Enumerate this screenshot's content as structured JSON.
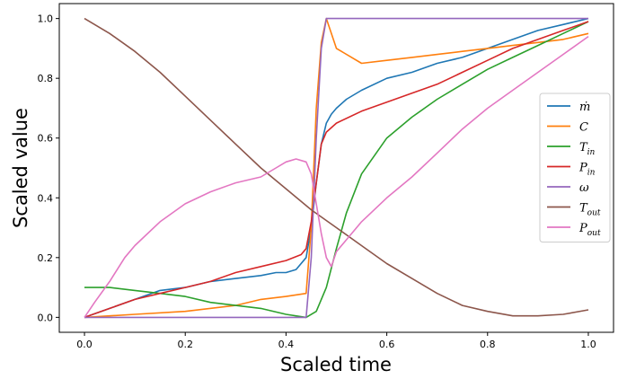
{
  "chart_data": {
    "type": "line",
    "xlabel": "Scaled time",
    "ylabel": "Scaled value",
    "xlim": [
      -0.05,
      1.05
    ],
    "ylim": [
      -0.05,
      1.05
    ],
    "xticks": [
      0.0,
      0.2,
      0.4,
      0.6,
      0.8,
      1.0
    ],
    "xtick_labels": [
      "0.0",
      "0.2",
      "0.4",
      "0.6",
      "0.8",
      "1.0"
    ],
    "yticks": [
      0.0,
      0.2,
      0.4,
      0.6,
      0.8,
      1.0
    ],
    "ytick_labels": [
      "0.0",
      "0.2",
      "0.4",
      "0.6",
      "0.8",
      "1.0"
    ],
    "grid": false,
    "legend_position": "right",
    "series": [
      {
        "name": "ṁ",
        "label_base": "ṁ",
        "label_sub": "",
        "color": "#1f77b4",
        "x": [
          0.0,
          0.05,
          0.1,
          0.15,
          0.2,
          0.25,
          0.3,
          0.35,
          0.38,
          0.4,
          0.42,
          0.44,
          0.45,
          0.46,
          0.47,
          0.48,
          0.49,
          0.5,
          0.52,
          0.55,
          0.6,
          0.65,
          0.7,
          0.75,
          0.8,
          0.85,
          0.9,
          0.95,
          1.0
        ],
        "y": [
          0.0,
          0.03,
          0.06,
          0.09,
          0.1,
          0.12,
          0.13,
          0.14,
          0.15,
          0.15,
          0.16,
          0.2,
          0.3,
          0.45,
          0.58,
          0.65,
          0.68,
          0.7,
          0.73,
          0.76,
          0.8,
          0.82,
          0.85,
          0.87,
          0.9,
          0.93,
          0.96,
          0.98,
          1.0
        ]
      },
      {
        "name": "C",
        "label_base": "C",
        "label_sub": "",
        "color": "#ff7f0e",
        "x": [
          0.0,
          0.1,
          0.2,
          0.3,
          0.35,
          0.4,
          0.44,
          0.45,
          0.46,
          0.47,
          0.48,
          0.49,
          0.5,
          0.55,
          0.6,
          0.65,
          0.7,
          0.75,
          0.8,
          0.85,
          0.9,
          0.95,
          1.0
        ],
        "y": [
          0.0,
          0.01,
          0.02,
          0.04,
          0.06,
          0.07,
          0.08,
          0.3,
          0.7,
          0.92,
          1.0,
          0.95,
          0.9,
          0.85,
          0.86,
          0.87,
          0.88,
          0.89,
          0.9,
          0.91,
          0.92,
          0.93,
          0.95
        ]
      },
      {
        "name": "Tin",
        "label_base": "T",
        "label_sub": "in",
        "color": "#2ca02c",
        "x": [
          0.0,
          0.05,
          0.1,
          0.15,
          0.2,
          0.25,
          0.3,
          0.35,
          0.4,
          0.44,
          0.46,
          0.48,
          0.5,
          0.52,
          0.55,
          0.6,
          0.65,
          0.7,
          0.75,
          0.8,
          0.85,
          0.9,
          0.95,
          1.0
        ],
        "y": [
          0.1,
          0.1,
          0.09,
          0.08,
          0.07,
          0.05,
          0.04,
          0.03,
          0.01,
          0.0,
          0.02,
          0.1,
          0.23,
          0.35,
          0.48,
          0.6,
          0.67,
          0.73,
          0.78,
          0.83,
          0.87,
          0.91,
          0.95,
          0.99
        ]
      },
      {
        "name": "Pin",
        "label_base": "P",
        "label_sub": "in",
        "color": "#d62728",
        "x": [
          0.0,
          0.05,
          0.1,
          0.15,
          0.2,
          0.25,
          0.3,
          0.35,
          0.4,
          0.43,
          0.44,
          0.45,
          0.46,
          0.47,
          0.48,
          0.5,
          0.55,
          0.6,
          0.65,
          0.7,
          0.75,
          0.8,
          0.85,
          0.9,
          0.95,
          1.0
        ],
        "y": [
          0.0,
          0.03,
          0.06,
          0.08,
          0.1,
          0.12,
          0.15,
          0.17,
          0.19,
          0.21,
          0.23,
          0.32,
          0.45,
          0.58,
          0.62,
          0.65,
          0.69,
          0.72,
          0.75,
          0.78,
          0.82,
          0.86,
          0.9,
          0.93,
          0.96,
          0.99
        ]
      },
      {
        "name": "ω",
        "label_base": "ω",
        "label_sub": "",
        "color": "#9467bd",
        "x": [
          0.0,
          0.1,
          0.2,
          0.3,
          0.4,
          0.44,
          0.45,
          0.46,
          0.47,
          0.48,
          0.5,
          0.6,
          0.7,
          0.8,
          0.9,
          1.0
        ],
        "y": [
          0.0,
          0.0,
          0.0,
          0.0,
          0.0,
          0.0,
          0.2,
          0.6,
          0.9,
          1.0,
          1.0,
          1.0,
          1.0,
          1.0,
          1.0,
          1.0
        ]
      },
      {
        "name": "Tout",
        "label_base": "T",
        "label_sub": "out",
        "color": "#8c564b",
        "x": [
          0.0,
          0.05,
          0.1,
          0.15,
          0.2,
          0.25,
          0.3,
          0.35,
          0.4,
          0.45,
          0.5,
          0.55,
          0.6,
          0.65,
          0.7,
          0.75,
          0.8,
          0.85,
          0.9,
          0.95,
          1.0
        ],
        "y": [
          1.0,
          0.95,
          0.89,
          0.82,
          0.74,
          0.66,
          0.58,
          0.5,
          0.43,
          0.36,
          0.3,
          0.24,
          0.18,
          0.13,
          0.08,
          0.04,
          0.02,
          0.005,
          0.005,
          0.01,
          0.025
        ]
      },
      {
        "name": "Pout",
        "label_base": "P",
        "label_sub": "out",
        "color": "#e377c2",
        "x": [
          0.0,
          0.02,
          0.05,
          0.08,
          0.1,
          0.15,
          0.2,
          0.25,
          0.3,
          0.35,
          0.38,
          0.4,
          0.42,
          0.44,
          0.45,
          0.46,
          0.47,
          0.48,
          0.49,
          0.5,
          0.52,
          0.55,
          0.6,
          0.65,
          0.7,
          0.75,
          0.8,
          0.85,
          0.9,
          0.95,
          1.0
        ],
        "y": [
          0.0,
          0.05,
          0.12,
          0.2,
          0.24,
          0.32,
          0.38,
          0.42,
          0.45,
          0.47,
          0.5,
          0.52,
          0.53,
          0.52,
          0.48,
          0.38,
          0.28,
          0.2,
          0.17,
          0.22,
          0.26,
          0.32,
          0.4,
          0.47,
          0.55,
          0.63,
          0.7,
          0.76,
          0.82,
          0.88,
          0.94
        ]
      }
    ]
  }
}
